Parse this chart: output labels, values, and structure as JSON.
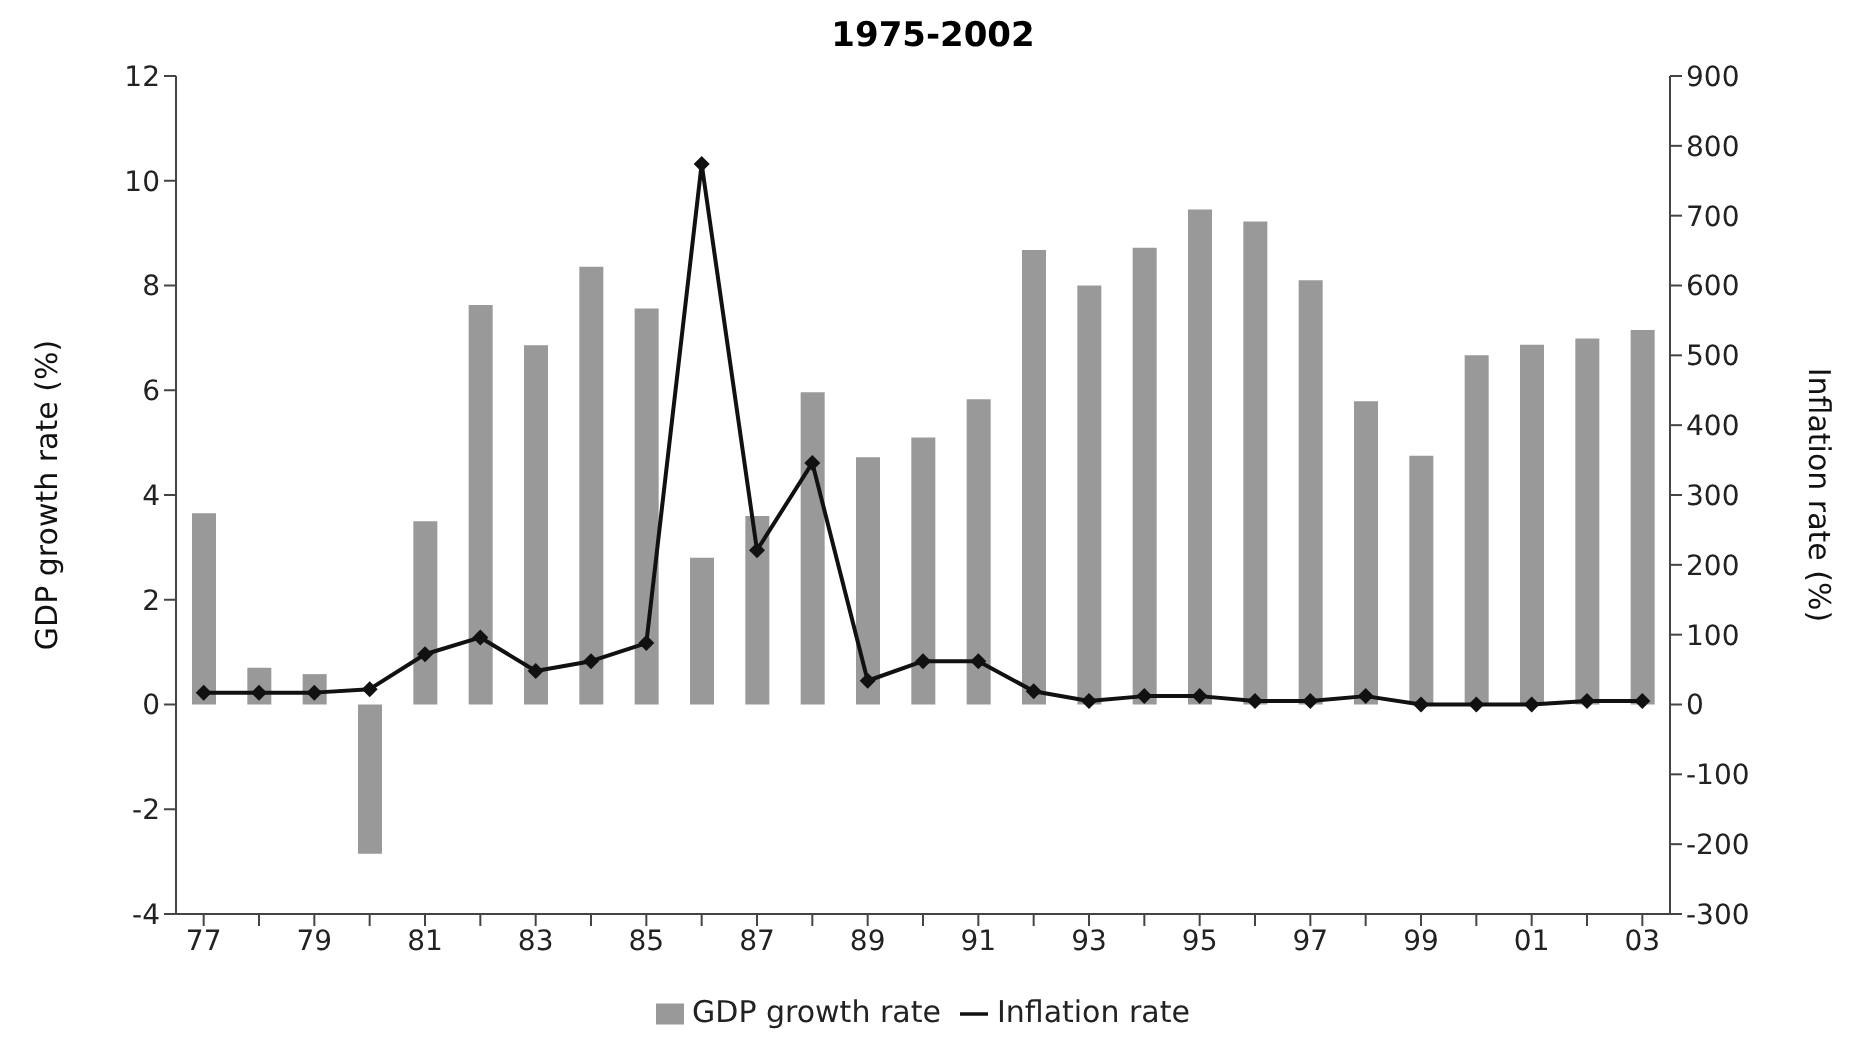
{
  "chart_data": {
    "type": "bar",
    "title": "1975-2002",
    "ylabel": "GDP growth rate (%)",
    "y2label": "Inflation rate (%)",
    "categories": [
      "77",
      null,
      "79",
      null,
      "81",
      null,
      "83",
      null,
      "85",
      null,
      "87",
      null,
      "89",
      null,
      "91",
      null,
      "93",
      null,
      "95",
      null,
      "97",
      null,
      "99",
      null,
      "01",
      null,
      "03"
    ],
    "series": [
      {
        "name": "GDP growth rate",
        "color": "#999999",
        "values": [
          3.65,
          0.7,
          0.58,
          -2.85,
          3.5,
          7.63,
          6.86,
          8.36,
          7.56,
          2.8,
          3.6,
          5.96,
          4.72,
          5.1,
          5.83,
          8.68,
          8.0,
          8.72,
          9.45,
          9.22,
          8.1,
          5.79,
          4.75,
          6.67,
          6.87,
          6.99,
          7.15
        ]
      },
      {
        "name": "Inflation rate",
        "type": "line",
        "axis": "y2",
        "color": "#111111",
        "marker": "diamond",
        "values": [
          17,
          17,
          17,
          22,
          72,
          96,
          48,
          62,
          88,
          774,
          221,
          346,
          34,
          62,
          62,
          19,
          5,
          12,
          12,
          5,
          5,
          12,
          0,
          0,
          0,
          5,
          5
        ]
      }
    ],
    "ylim": [
      -4,
      12
    ],
    "yticks": [
      -4,
      -2,
      0,
      2,
      4,
      6,
      8,
      10,
      12
    ],
    "y2lim": [
      -300,
      900
    ],
    "y2ticks": [
      -300,
      -200,
      -100,
      0,
      100,
      200,
      300,
      400,
      500,
      600,
      700,
      800,
      900
    ],
    "grid": false,
    "legend": "bottom"
  }
}
